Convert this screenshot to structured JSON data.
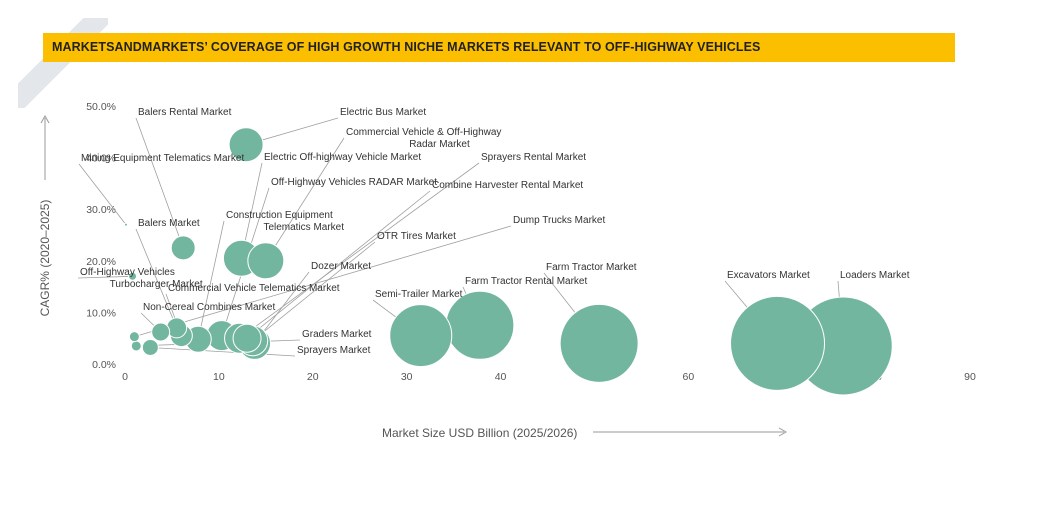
{
  "banner": {
    "title": "MARKETSANDMARKETS’ COVERAGE OF HIGH GROWTH NICHE MARKETS RELEVANT TO OFF-HIGHWAY  VEHICLES",
    "color": "#fbbf00"
  },
  "colors": {
    "bubble": "#73b6a0",
    "bubble_stroke": "#ffffff",
    "leader": "#a0a0a0",
    "axis_arrow": "#999999"
  },
  "chart_data": {
    "type": "bubble",
    "title": "MARKETSANDMARKETS’ COVERAGE OF HIGH GROWTH NICHE MARKETS RELEVANT TO OFF-HIGHWAY  VEHICLES",
    "xlabel": "Market Size USD Billion (2025/2026)",
    "ylabel": "CAGR% (2020–2025)",
    "xlim": [
      0,
      90
    ],
    "ylim": [
      0,
      50
    ],
    "x_ticks": [
      "0",
      "10",
      "20",
      "30",
      "40",
      "50",
      "60",
      "70",
      "80",
      "90"
    ],
    "y_ticks": [
      "0.0%",
      "10.0%",
      "20.0%",
      "30.0%",
      "40.0%",
      "50.0%"
    ],
    "grid": false,
    "legend": "none",
    "points": [
      {
        "name": "Electric Bus Market",
        "x": 12.9,
        "y": 42.5,
        "size": 17
      },
      {
        "name": "Mining Equipment Telematics Market",
        "x": 0.1,
        "y": 27.0,
        "size": 1.5
      },
      {
        "name": "Balers Rental Market",
        "x": 6.2,
        "y": 22.5,
        "size": 12
      },
      {
        "name": "Electric Off-highway Vehicle Market",
        "x": 12.4,
        "y": 20.5,
        "size": 18
      },
      {
        "name": "Commercial Vehicle & Off-Highway Radar Market",
        "x": 15.0,
        "y": 20.0,
        "size": 18
      },
      {
        "name": "Off-Highway Vehicles Turbocharger Market",
        "x": 0.8,
        "y": 17.0,
        "size": 4
      },
      {
        "name": "Balers Market",
        "x": 5.5,
        "y": 7.0,
        "size": 10
      },
      {
        "name": "Non-Cereal Combines Market",
        "x": 3.8,
        "y": 6.2,
        "size": 9
      },
      {
        "name": "Commercial Vehicle Telematics Market",
        "x": 6.0,
        "y": 5.5,
        "size": 11
      },
      {
        "name": "Construction Equipment Telematics Market",
        "x": 7.8,
        "y": 4.8,
        "size": 13
      },
      {
        "name": "Off-Highway Vehicles RADAR Market",
        "x": 10.3,
        "y": 5.5,
        "size": 15
      },
      {
        "name": "Sprayers Rental Market",
        "x": 12.2,
        "y": 5.0,
        "size": 15
      },
      {
        "name": "Combine Harvester Rental Market",
        "x": 13.0,
        "y": 5.0,
        "size": 14
      },
      {
        "name": "OTR Tires Market",
        "x": 13.6,
        "y": 4.5,
        "size": 15
      },
      {
        "name": "Dozer Market",
        "x": 13.8,
        "y": 4.0,
        "size": 16
      },
      {
        "name": "Graders Market",
        "x": 1.2,
        "y": 3.5,
        "size": 5
      },
      {
        "name": "Sprayers Market",
        "x": 2.7,
        "y": 3.2,
        "size": 8
      },
      {
        "name": "Dump Trucks Market",
        "x": 1.0,
        "y": 5.3,
        "size": 5
      },
      {
        "name": "Semi-Trailer Market",
        "x": 31.5,
        "y": 5.5,
        "size": 31
      },
      {
        "name": "Farm Tractor Rental Market",
        "x": 37.8,
        "y": 7.5,
        "size": 34
      },
      {
        "name": "Farm Tractor Market",
        "x": 50.5,
        "y": 4.0,
        "size": 39
      },
      {
        "name": "Excavators Market",
        "x": 69.5,
        "y": 4.0,
        "size": 47
      },
      {
        "name": "Loaders Market",
        "x": 76.5,
        "y": 3.5,
        "size": 49
      }
    ]
  }
}
